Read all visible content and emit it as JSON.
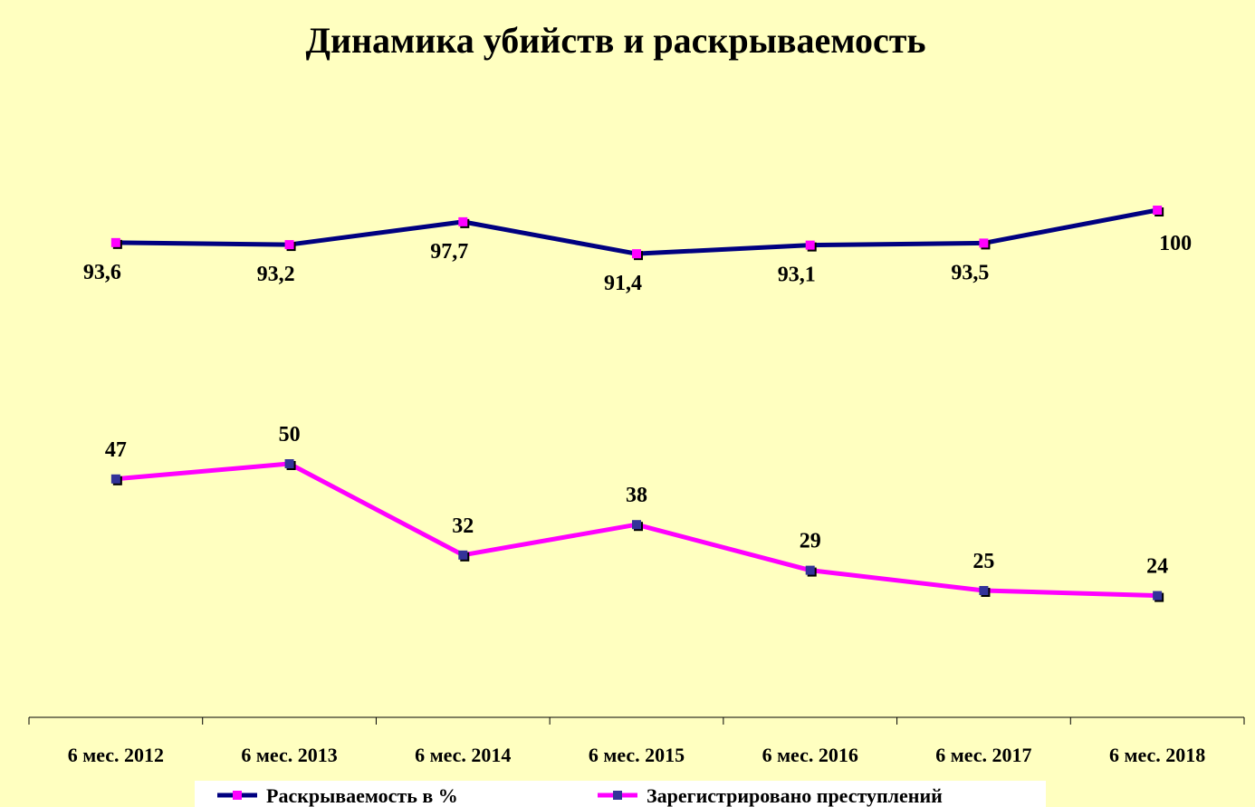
{
  "chart_data": {
    "type": "line",
    "title": "Динамика убийств и  раскрываемость",
    "categories": [
      "6 мес. 2012",
      "6 мес. 2013",
      "6 мес. 2014",
      "6 мес. 2015",
      "6 мес. 2016",
      "6 мес. 2017",
      "6 мес. 2018"
    ],
    "series": [
      {
        "name": "Раскрываемость в %",
        "color": "#000080",
        "marker_color": "#ff00ff",
        "values": [
          93.6,
          93.2,
          97.7,
          91.4,
          93.1,
          93.5,
          100
        ],
        "value_labels": [
          "93,6",
          "93,2",
          "97,7",
          "91,4",
          "93,1",
          "93,5",
          "100"
        ]
      },
      {
        "name": "Зарегистрировано преступлений",
        "color": "#ff00ff",
        "marker_color": "#333399",
        "values": [
          47,
          50,
          32,
          38,
          29,
          25,
          24
        ]
      }
    ],
    "ylim": [
      0,
      120
    ],
    "grid": false,
    "legend": "bottom"
  }
}
